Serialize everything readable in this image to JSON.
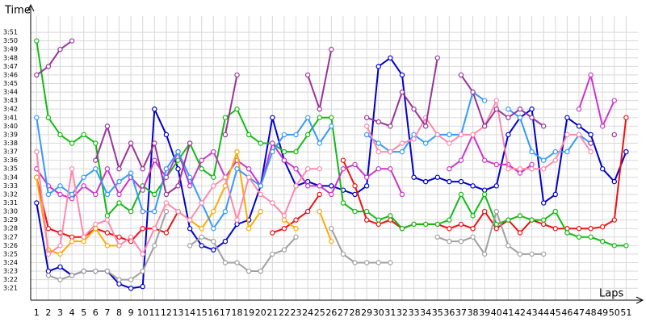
{
  "chart_data": {
    "type": "line",
    "y_label": "Time",
    "x_label": "Laps",
    "x": [
      1,
      2,
      3,
      4,
      5,
      6,
      7,
      8,
      9,
      10,
      11,
      12,
      13,
      14,
      15,
      16,
      17,
      18,
      19,
      20,
      21,
      22,
      23,
      24,
      25,
      26,
      27,
      28,
      29,
      30,
      31,
      32,
      33,
      34,
      35,
      36,
      37,
      38,
      39,
      40,
      41,
      42,
      43,
      44,
      45,
      46,
      47,
      48,
      49,
      50,
      51
    ],
    "xticks": [
      1,
      2,
      3,
      4,
      5,
      6,
      7,
      8,
      9,
      10,
      11,
      12,
      13,
      14,
      15,
      16,
      17,
      18,
      19,
      20,
      21,
      22,
      23,
      24,
      25,
      26,
      27,
      28,
      29,
      30,
      31,
      32,
      33,
      34,
      35,
      36,
      37,
      38,
      39,
      40,
      41,
      42,
      43,
      44,
      45,
      46,
      47,
      48,
      49,
      50,
      51
    ],
    "xlim": [
      0.5,
      52
    ],
    "ylim": [
      199.6,
      232.9
    ],
    "yticks": [
      {
        "value": 201,
        "label": "3:21"
      },
      {
        "value": 202,
        "label": "3:22"
      },
      {
        "value": 203,
        "label": "3:23"
      },
      {
        "value": 204,
        "label": "3:24"
      },
      {
        "value": 205,
        "label": "3:25"
      },
      {
        "value": 206,
        "label": "3:26"
      },
      {
        "value": 207,
        "label": "3:27"
      },
      {
        "value": 208,
        "label": "3:28"
      },
      {
        "value": 209,
        "label": "3:29"
      },
      {
        "value": 210,
        "label": "3:30"
      },
      {
        "value": 211,
        "label": "3:31"
      },
      {
        "value": 212,
        "label": "3:32"
      },
      {
        "value": 213,
        "label": "3:33"
      },
      {
        "value": 214,
        "label": "3:34"
      },
      {
        "value": 215,
        "label": "3:35"
      },
      {
        "value": 216,
        "label": "3:36"
      },
      {
        "value": 217,
        "label": "3:37"
      },
      {
        "value": 218,
        "label": "3:38"
      },
      {
        "value": 219,
        "label": "3:39"
      },
      {
        "value": 220,
        "label": "3:40"
      },
      {
        "value": 221,
        "label": "3:41"
      },
      {
        "value": 222,
        "label": "3:42"
      },
      {
        "value": 223,
        "label": "3:43"
      },
      {
        "value": 224,
        "label": "3:44"
      },
      {
        "value": 225,
        "label": "3:45"
      },
      {
        "value": 226,
        "label": "3:46"
      },
      {
        "value": 227,
        "label": "3:47"
      },
      {
        "value": 228,
        "label": "3:48"
      },
      {
        "value": 229,
        "label": "3:49"
      },
      {
        "value": 230,
        "label": "3:50"
      },
      {
        "value": 231,
        "label": "3:51"
      }
    ],
    "grid": true,
    "series": [
      {
        "color": "#0000cc",
        "values": [
          211,
          203,
          203.5,
          202.5,
          203,
          203,
          203,
          201.5,
          201,
          201.2,
          222,
          219,
          215,
          208,
          206,
          205.5,
          206.5,
          208.5,
          209,
          213,
          221,
          216,
          213,
          213.5,
          213,
          213,
          212.5,
          212,
          213,
          227,
          228,
          226,
          214,
          213.5,
          214,
          213.5,
          213.5,
          213,
          212.5,
          213,
          219,
          221,
          222,
          211,
          212,
          221,
          220,
          219,
          215,
          213.5,
          217
        ]
      },
      {
        "color": "#ee1111",
        "values": [
          214,
          208,
          207.5,
          207,
          207,
          208,
          207.5,
          207,
          206.5,
          208,
          208,
          207.5,
          210,
          null,
          null,
          null,
          null,
          null,
          null,
          null,
          207.5,
          208,
          209,
          210,
          212,
          null,
          216,
          213,
          209,
          208.5,
          209,
          208,
          208.5,
          208.5,
          208.5,
          208,
          208.5,
          208,
          210,
          208,
          209,
          207.5,
          209,
          208.5,
          208,
          208,
          208,
          208,
          208.2,
          209,
          221
        ]
      },
      {
        "color": "#11bb11",
        "values": [
          230,
          221,
          219,
          218,
          219,
          218,
          209.5,
          211,
          210,
          213,
          212,
          214,
          216,
          218,
          215,
          214,
          221,
          222,
          219,
          218,
          218,
          217,
          217,
          219,
          221,
          221,
          211,
          210,
          210,
          209,
          209.5,
          208,
          208.5,
          208.5,
          208.5,
          209,
          212,
          209.5,
          212,
          208.5,
          209,
          209.5,
          209,
          209,
          210,
          207.5,
          207,
          207,
          206.5,
          206,
          206
        ]
      },
      {
        "color": "#a0a0a0",
        "values": [
          null,
          202.5,
          202,
          202.5,
          203,
          203,
          203,
          202,
          202,
          203,
          206,
          210,
          null,
          206,
          207,
          206.5,
          204,
          204,
          203,
          203,
          205,
          205.5,
          207,
          null,
          null,
          208,
          205,
          204,
          204,
          204,
          204,
          null,
          null,
          null,
          207,
          206.5,
          206.5,
          207,
          205,
          210,
          206,
          205,
          205,
          205,
          null,
          null,
          null,
          null,
          null,
          null,
          null
        ]
      },
      {
        "color": "#cc33cc",
        "values": [
          215,
          213,
          212,
          211.5,
          213,
          212,
          215,
          212,
          214,
          212.5,
          216,
          214,
          217,
          213,
          216,
          217,
          214,
          216,
          215,
          213,
          218,
          216,
          215,
          213,
          213,
          212,
          215,
          215.5,
          214,
          215,
          215,
          212,
          null,
          null,
          null,
          215,
          216,
          219,
          216,
          215.5,
          215.5,
          214.5,
          215.5,
          null,
          null,
          null,
          222,
          226,
          220,
          223,
          null
        ]
      },
      {
        "color": "#ffaa00",
        "values": [
          214,
          205.5,
          205,
          206.5,
          206.5,
          208,
          206,
          206,
          null,
          null,
          null,
          null,
          210,
          209,
          208,
          210,
          213,
          217,
          208,
          210,
          null,
          209,
          208,
          null,
          210,
          206.5,
          null,
          null,
          null,
          null,
          null,
          null,
          null,
          null,
          null,
          null,
          null,
          null,
          null,
          null,
          null,
          null,
          null,
          null,
          null,
          null,
          null,
          null,
          null,
          null,
          null
        ]
      },
      {
        "color": "#3399ff",
        "values": [
          221,
          212,
          213,
          212,
          214,
          215,
          212,
          213.5,
          214.5,
          210,
          210,
          215,
          217,
          214,
          211,
          208,
          210,
          215,
          214,
          213,
          217,
          219,
          219,
          221,
          218,
          220,
          null,
          null,
          219,
          218,
          217,
          217,
          219,
          218,
          219,
          219,
          219,
          224,
          223,
          null,
          222,
          221,
          217,
          216,
          217,
          217,
          219,
          218,
          null,
          null,
          null
        ]
      },
      {
        "color": "#ff88aa",
        "values": [
          217,
          205,
          206,
          215,
          207,
          208.5,
          209,
          206,
          207,
          205,
          208,
          211,
          210,
          209,
          211,
          213,
          214,
          209,
          214,
          212,
          211,
          209.5,
          213,
          215,
          215,
          null,
          null,
          null,
          220,
          217,
          217,
          218,
          218.5,
          221,
          219,
          218,
          219,
          219,
          220,
          223,
          215,
          215,
          215,
          215,
          216,
          219,
          219,
          217,
          null,
          null,
          null
        ]
      },
      {
        "color": "#993399",
        "values": [
          226,
          227,
          229,
          230,
          null,
          216,
          220,
          215,
          218,
          215,
          218,
          212,
          213,
          218,
          null,
          null,
          219,
          226,
          null,
          null,
          null,
          null,
          null,
          226,
          222,
          229,
          null,
          null,
          221,
          220.5,
          220,
          224,
          222,
          220,
          228,
          null,
          226,
          224,
          220,
          222,
          221,
          222,
          221,
          220,
          null,
          null,
          null,
          218,
          null,
          219,
          null
        ]
      }
    ]
  }
}
